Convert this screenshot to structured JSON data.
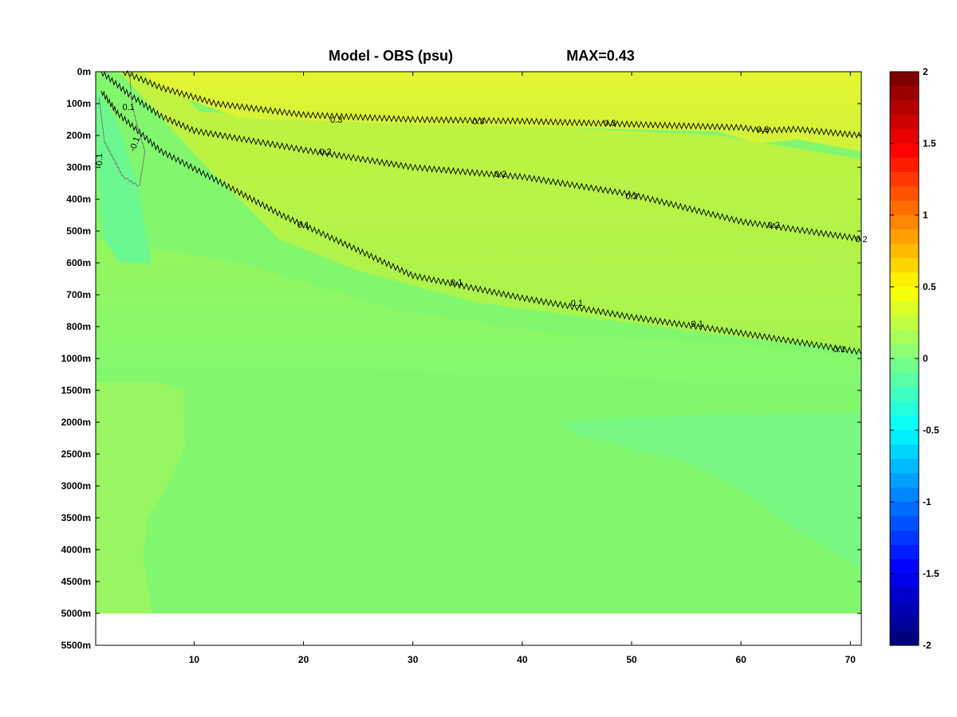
{
  "chart_data": {
    "type": "heatmap",
    "title": "Model - OBS (psu)",
    "subtitle": "MAX=0.43",
    "xlabel": "",
    "ylabel": "",
    "xlim": [
      1,
      71
    ],
    "x_ticks": [
      10,
      20,
      30,
      40,
      50,
      60,
      70
    ],
    "x_tick_labels": [
      "10",
      "20",
      "30",
      "40",
      "50",
      "60",
      "70"
    ],
    "y_tick_labels": [
      "0m",
      "100m",
      "200m",
      "300m",
      "400m",
      "500m",
      "600m",
      "700m",
      "800m",
      "1000m",
      "1500m",
      "2000m",
      "2500m",
      "3000m",
      "3500m",
      "4000m",
      "4500m",
      "5000m",
      "5500m"
    ],
    "y_tick_depths": [
      0,
      100,
      200,
      300,
      400,
      500,
      600,
      700,
      800,
      1000,
      1500,
      2000,
      2500,
      3000,
      3500,
      4000,
      4500,
      5000,
      5500
    ],
    "data_bottom_depth": 5000,
    "colorbar": {
      "range": [
        -2,
        2
      ],
      "ticks": [
        2,
        1.5,
        1,
        0.5,
        0,
        -0.5,
        -1,
        -1.5,
        -2
      ],
      "tick_labels": [
        "2",
        "1.5",
        "1",
        "0.5",
        "0",
        "-0.5",
        "-1",
        "-1.5",
        "-2"
      ],
      "colormap": "jet",
      "levels": 40
    },
    "contours": [
      {
        "level": 0.3,
        "label": "0.3",
        "points": [
          [
            3.5,
            0
          ],
          [
            7,
            50
          ],
          [
            12,
            100
          ],
          [
            20,
            135
          ],
          [
            30,
            150
          ],
          [
            40,
            155
          ],
          [
            50,
            165
          ],
          [
            60,
            175
          ],
          [
            62,
            185
          ],
          [
            65,
            180
          ],
          [
            71,
            200
          ]
        ]
      },
      {
        "level": 0.2,
        "label": "0.2",
        "points": [
          [
            1.5,
            0
          ],
          [
            4,
            70
          ],
          [
            7,
            140
          ],
          [
            10,
            185
          ],
          [
            20,
            245
          ],
          [
            30,
            300
          ],
          [
            40,
            330
          ],
          [
            50,
            385
          ],
          [
            60,
            470
          ],
          [
            71,
            525
          ]
        ]
      },
      {
        "level": 0.1,
        "label": "0.1",
        "points": [
          [
            1.5,
            60
          ],
          [
            3,
            130
          ],
          [
            7,
            250
          ],
          [
            12,
            340
          ],
          [
            18,
            450
          ],
          [
            25,
            560
          ],
          [
            30,
            640
          ],
          [
            40,
            710
          ],
          [
            50,
            770
          ],
          [
            60,
            840
          ],
          [
            71,
            960
          ]
        ]
      }
    ],
    "contour_labels": [
      {
        "text": "0.3",
        "x": 23,
        "y": 150
      },
      {
        "text": "0.3",
        "x": 36,
        "y": 155
      },
      {
        "text": "0.3",
        "x": 48,
        "y": 160
      },
      {
        "text": "0.3",
        "x": 62,
        "y": 180
      },
      {
        "text": "0.2",
        "x": 22,
        "y": 250
      },
      {
        "text": "0.2",
        "x": 38,
        "y": 320
      },
      {
        "text": "0.2",
        "x": 50,
        "y": 390
      },
      {
        "text": "0.2",
        "x": 63,
        "y": 480
      },
      {
        "text": "0.2",
        "x": 71,
        "y": 525
      },
      {
        "text": "0.1",
        "x": 4,
        "y": 110
      },
      {
        "text": "0.1",
        "x": 20,
        "y": 480
      },
      {
        "text": "0.1",
        "x": 34,
        "y": 660
      },
      {
        "text": "0.1",
        "x": 45,
        "y": 725
      },
      {
        "text": "0.1",
        "x": 56,
        "y": 790
      },
      {
        "text": "0.1",
        "x": 69,
        "y": 940
      }
    ],
    "neg_contour": {
      "level": -0.1,
      "label": "-0.1",
      "points": [
        [
          1.3,
          80
        ],
        [
          1.8,
          220
        ],
        [
          3.5,
          330
        ],
        [
          5,
          360
        ],
        [
          5.5,
          250
        ],
        [
          4.8,
          170
        ],
        [
          4.3,
          100
        ],
        [
          4.1,
          0
        ]
      ]
    }
  }
}
